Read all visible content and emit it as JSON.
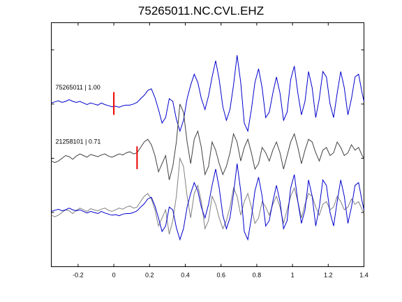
{
  "chart_data": {
    "type": "line",
    "title": "75265011.NC.CVL.EHZ",
    "xlabel": "",
    "ylabel": "",
    "xlim": [
      -0.35,
      1.4
    ],
    "xticks": [
      -0.2,
      0,
      0.2,
      0.4,
      0.6,
      0.8,
      1,
      1.2,
      1.4
    ],
    "xtick_labels": [
      "-0.2",
      "0",
      "0.2",
      "0.4",
      "0.6",
      "0.8",
      "1",
      "1.2",
      "1.4"
    ],
    "ylim": [
      -4,
      0.5
    ],
    "grid": false,
    "colors": {
      "event1": "#0000cc",
      "event2": "#404040",
      "marker": "#ee0000"
    },
    "traces": [
      {
        "label": "75265011 | 1.00",
        "offset": -1,
        "pick_time": 0.0,
        "x": [
          -0.35,
          -0.33,
          -0.31,
          -0.29,
          -0.27,
          -0.25,
          -0.23,
          -0.21,
          -0.19,
          -0.17,
          -0.15,
          -0.13,
          -0.11,
          -0.09,
          -0.07,
          -0.05,
          -0.03,
          -0.01,
          0.01,
          0.03,
          0.05,
          0.07,
          0.09,
          0.11,
          0.13,
          0.15,
          0.17,
          0.19,
          0.21,
          0.23,
          0.25,
          0.27,
          0.29,
          0.31,
          0.33,
          0.35,
          0.37,
          0.39,
          0.41,
          0.43,
          0.45,
          0.47,
          0.49,
          0.51,
          0.53,
          0.55,
          0.57,
          0.59,
          0.61,
          0.63,
          0.65,
          0.67,
          0.69,
          0.71,
          0.73,
          0.75,
          0.77,
          0.79,
          0.81,
          0.83,
          0.85,
          0.87,
          0.89,
          0.91,
          0.93,
          0.95,
          0.97,
          0.99,
          1.01,
          1.03,
          1.05,
          1.07,
          1.09,
          1.11,
          1.13,
          1.15,
          1.17,
          1.19,
          1.21,
          1.23,
          1.25,
          1.27,
          1.29,
          1.31,
          1.33,
          1.35,
          1.37,
          1.39,
          1.4
        ],
        "y": [
          0.02,
          0.04,
          0.06,
          0.03,
          0.05,
          0.08,
          0.05,
          0.03,
          0.05,
          0.02,
          -0.01,
          0.02,
          0.0,
          -0.02,
          0.02,
          -0.01,
          -0.03,
          -0.05,
          -0.04,
          -0.06,
          -0.03,
          -0.02,
          -0.02,
          0.0,
          0.03,
          0.1,
          0.16,
          0.25,
          0.28,
          0.12,
          -0.1,
          -0.35,
          -0.25,
          0.1,
          0.05,
          -0.28,
          -0.5,
          -0.3,
          0.1,
          0.35,
          0.55,
          0.4,
          0.1,
          -0.1,
          0.15,
          0.5,
          0.8,
          0.45,
          -0.05,
          -0.3,
          -0.1,
          0.35,
          0.9,
          0.4,
          -0.35,
          -0.5,
          -0.1,
          0.4,
          0.65,
          0.3,
          -0.25,
          -0.15,
          0.2,
          0.5,
          0.2,
          -0.3,
          -0.15,
          0.45,
          0.7,
          0.2,
          -0.2,
          0.05,
          0.6,
          0.3,
          -0.25,
          0.1,
          0.6,
          0.5,
          0.0,
          -0.25,
          0.2,
          0.6,
          0.3,
          -0.2,
          0.1,
          0.5,
          0.55,
          0.2,
          0.05
        ]
      },
      {
        "label": "21258101 | 0.71",
        "offset": -2,
        "pick_time": 0.13,
        "x": [
          -0.35,
          -0.33,
          -0.31,
          -0.29,
          -0.27,
          -0.25,
          -0.23,
          -0.21,
          -0.19,
          -0.17,
          -0.15,
          -0.13,
          -0.11,
          -0.09,
          -0.07,
          -0.05,
          -0.03,
          -0.01,
          0.01,
          0.03,
          0.05,
          0.07,
          0.09,
          0.11,
          0.13,
          0.15,
          0.17,
          0.19,
          0.21,
          0.23,
          0.25,
          0.27,
          0.29,
          0.31,
          0.33,
          0.35,
          0.37,
          0.39,
          0.41,
          0.43,
          0.45,
          0.47,
          0.49,
          0.51,
          0.53,
          0.55,
          0.57,
          0.59,
          0.61,
          0.63,
          0.65,
          0.67,
          0.69,
          0.71,
          0.73,
          0.75,
          0.77,
          0.79,
          0.81,
          0.83,
          0.85,
          0.87,
          0.89,
          0.91,
          0.93,
          0.95,
          0.97,
          0.99,
          1.01,
          1.03,
          1.05,
          1.07,
          1.09,
          1.11,
          1.13,
          1.15,
          1.17,
          1.19,
          1.21,
          1.23,
          1.25,
          1.27,
          1.29,
          1.31,
          1.33,
          1.35,
          1.37,
          1.39,
          1.4
        ],
        "y": [
          -0.05,
          -0.08,
          -0.05,
          0.0,
          0.05,
          0.03,
          -0.02,
          0.04,
          0.08,
          0.05,
          0.02,
          0.07,
          0.05,
          0.03,
          0.06,
          0.08,
          0.04,
          0.02,
          0.05,
          0.08,
          0.06,
          0.1,
          0.12,
          0.08,
          0.1,
          0.2,
          0.3,
          0.35,
          0.25,
          0.05,
          -0.25,
          -0.1,
          0.05,
          -0.4,
          -0.15,
          0.3,
          1.0,
          0.85,
          0.3,
          -0.1,
          0.35,
          0.5,
          0.2,
          -0.3,
          -0.15,
          0.3,
          0.15,
          -0.1,
          -0.3,
          -0.15,
          0.1,
          0.45,
          0.3,
          -0.05,
          0.2,
          0.35,
          0.1,
          -0.2,
          -0.1,
          0.2,
          0.1,
          -0.05,
          0.15,
          0.3,
          0.1,
          -0.2,
          0.05,
          0.3,
          0.45,
          0.2,
          -0.1,
          0.15,
          0.35,
          0.3,
          0.1,
          -0.05,
          0.15,
          0.2,
          0.05,
          0.1,
          0.3,
          0.2,
          0.05,
          0.1,
          0.25,
          0.15,
          0.2,
          0.05,
          0.0
        ]
      },
      {
        "label": "",
        "offset": -3,
        "pick_time": null,
        "overlay": true
      }
    ]
  }
}
